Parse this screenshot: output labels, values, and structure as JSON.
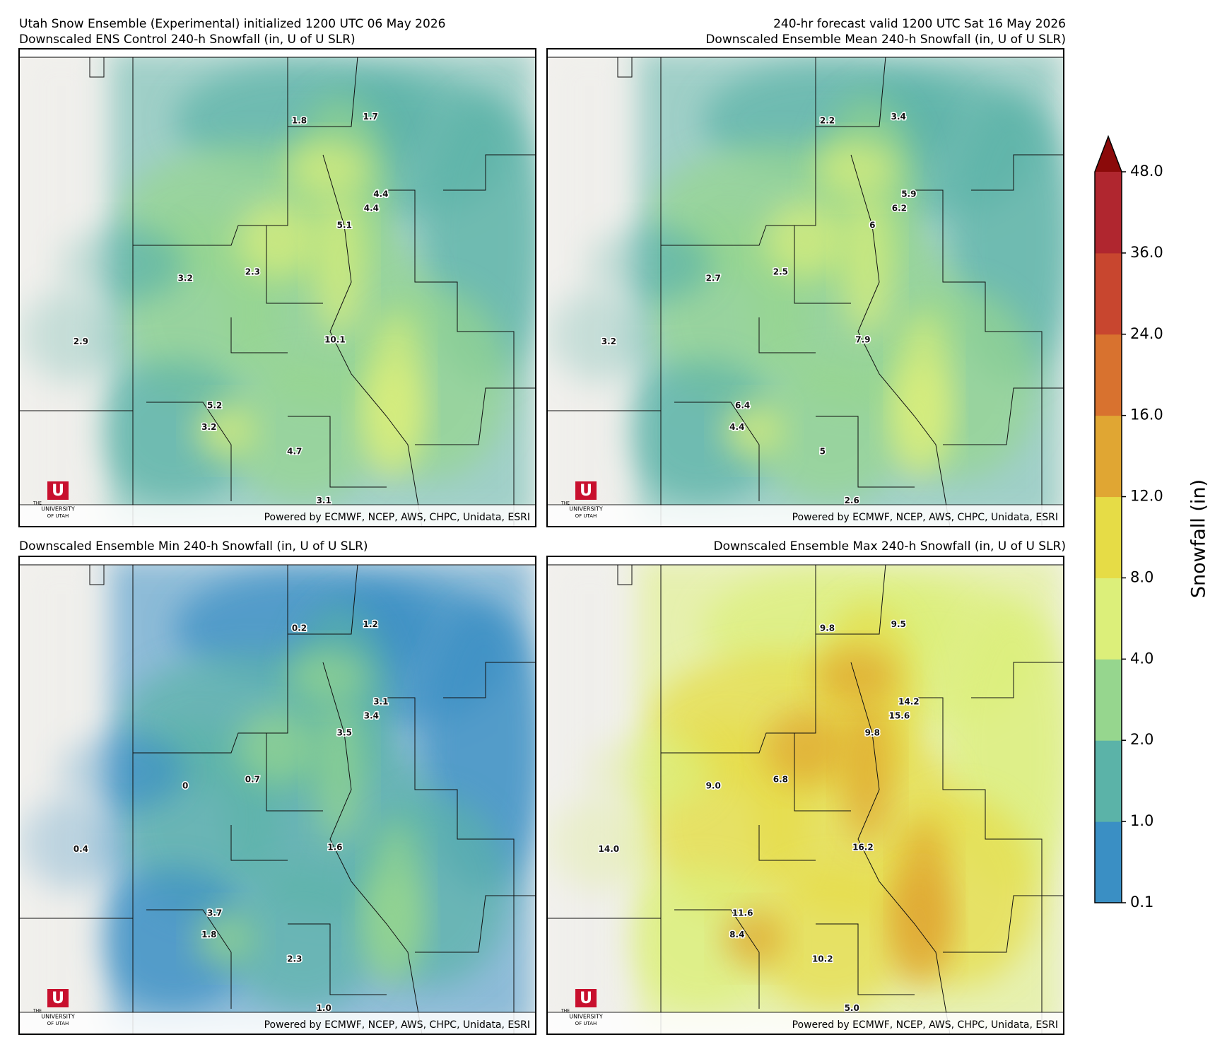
{
  "header": {
    "left": "Utah Snow Ensemble (Experimental) initialized 1200 UTC 06 May 2026",
    "right": "240-hr forecast valid 1200 UTC Sat 16 May 2026"
  },
  "panels": [
    {
      "title": "Downscaled ENS Control 240-h Snowfall (in, U of U SLR)",
      "values": [
        1.8,
        1.7,
        4.4,
        4.4,
        5.1,
        3.2,
        2.3,
        2.9,
        10.1,
        5.2,
        3.2,
        4.7,
        3.1
      ]
    },
    {
      "title": "Downscaled Ensemble Mean 240-h Snowfall (in, U of U SLR)",
      "values": [
        2.2,
        3.4,
        5.9,
        6.2,
        6.0,
        2.7,
        2.5,
        3.2,
        7.9,
        6.4,
        4.4,
        5.0,
        2.6
      ]
    },
    {
      "title": "Downscaled Ensemble Min 240-h Snowfall (in, U of U SLR)",
      "values": [
        0.2,
        1.2,
        3.1,
        3.4,
        3.5,
        0,
        0.7,
        0.4,
        1.6,
        3.7,
        1.8,
        2.3,
        1
      ],
      "value_labels": [
        "0.2",
        "1.2",
        "3.1",
        "3.4",
        "3.5",
        "0",
        "0.7",
        "0.4",
        "1.6",
        "3.7",
        "1.8",
        "2.3",
        "1.0"
      ]
    },
    {
      "title": "Downscaled Ensemble Max 240-h Snowfall (in, U of U SLR)",
      "values": [
        9.8,
        9.5,
        14.2,
        15.6,
        9.8,
        9.0,
        6.8,
        14,
        16.2,
        11.6,
        8.4,
        10.2,
        5.0
      ],
      "value_labels": [
        "9.8",
        "9.5",
        "14.2",
        "15.6",
        "9.8",
        "9.0",
        "6.8",
        "14.0",
        "16.2",
        "11.6",
        "8.4",
        "10.2",
        "5.0"
      ]
    }
  ],
  "credit": "Powered by ECMWF, NCEP, AWS, CHPC, Unidata, ESRI",
  "logo": {
    "letter": "U",
    "top": "THE",
    "middle": "UNIVERSITY",
    "bottom": "OF UTAH"
  },
  "colorbar": {
    "label": "Snowfall (in)",
    "ticks": [
      0.1,
      {
        "value": 1,
        "label": "1.0"
      },
      {
        "value": 2,
        "label": "2.0"
      },
      {
        "value": 4,
        "label": "4.0"
      },
      {
        "value": 8,
        "label": "8.0"
      },
      {
        "value": 12,
        "label": "12.0"
      },
      {
        "value": 16,
        "label": "16.0"
      },
      {
        "value": 24,
        "label": "24.0"
      },
      {
        "value": 36,
        "label": "36.0"
      },
      {
        "value": 48,
        "label": "48.0"
      }
    ],
    "colors": [
      "#3a8fc4",
      "#5bb3a8",
      "#96d68e",
      "#dcef7a",
      "#e6dc46",
      "#e0a633",
      "#d8722f",
      "#c8462f",
      "#b0262f"
    ],
    "extend_color": "#8b0a0a"
  }
}
